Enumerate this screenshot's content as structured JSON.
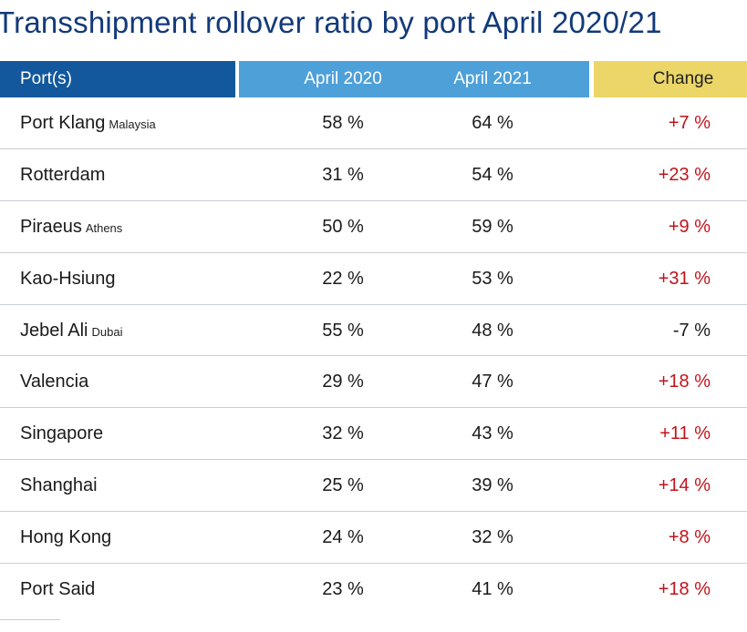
{
  "chart_data": {
    "type": "table",
    "title": "Transshipment rollover ratio by port April 2020/21",
    "columns": [
      "Port(s)",
      "April 2020",
      "April 2021",
      "Change"
    ],
    "rows": [
      {
        "port": "Port Klang",
        "sub": "Malaysia",
        "april_2020": "58 %",
        "april_2021": "64 %",
        "change": "+7 %",
        "change_sign": "pos"
      },
      {
        "port": "Rotterdam",
        "sub": "",
        "april_2020": "31 %",
        "april_2021": "54 %",
        "change": "+23 %",
        "change_sign": "pos"
      },
      {
        "port": "Piraeus",
        "sub": "Athens",
        "april_2020": "50 %",
        "april_2021": "59 %",
        "change": "+9 %",
        "change_sign": "pos"
      },
      {
        "port": "Kao-Hsiung",
        "sub": "",
        "april_2020": "22 %",
        "april_2021": "53 %",
        "change": "+31 %",
        "change_sign": "pos"
      },
      {
        "port": "Jebel Ali",
        "sub": "Dubai",
        "april_2020": "55 %",
        "april_2021": "48 %",
        "change": "-7 %",
        "change_sign": "neg"
      },
      {
        "port": "Valencia",
        "sub": "",
        "april_2020": "29 %",
        "april_2021": "47 %",
        "change": "+18 %",
        "change_sign": "pos"
      },
      {
        "port": "Singapore",
        "sub": "",
        "april_2020": "32 %",
        "april_2021": "43 %",
        "change": "+11 %",
        "change_sign": "pos"
      },
      {
        "port": "Shanghai",
        "sub": "",
        "april_2020": "25 %",
        "april_2021": "39 %",
        "change": "+14 %",
        "change_sign": "pos"
      },
      {
        "port": "Hong Kong",
        "sub": "",
        "april_2020": "24 %",
        "april_2021": "32 %",
        "change": "+8 %",
        "change_sign": "pos"
      },
      {
        "port": "Port Said",
        "sub": "",
        "april_2020": "23 %",
        "april_2021": "41 %",
        "change": "+18 %",
        "change_sign": "pos"
      }
    ]
  },
  "colors": {
    "title": "#123a7a",
    "header_port_bg": "#13589c",
    "header_years_bg": "#4ea0d9",
    "header_change_bg": "#ebd667",
    "positive_change": "#c0141b",
    "negative_change": "#1a1a1a",
    "row_divider": "#c9ced6"
  }
}
